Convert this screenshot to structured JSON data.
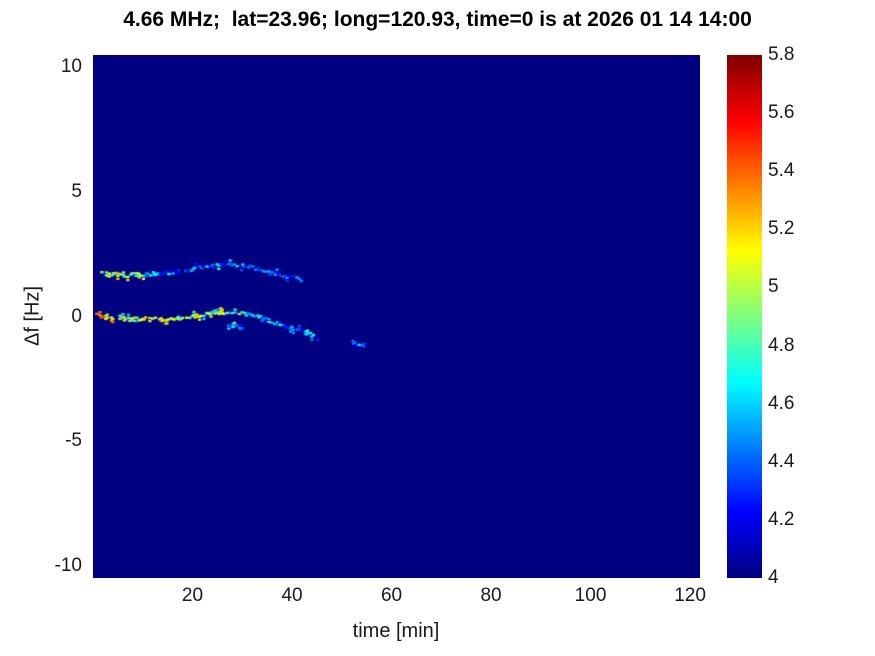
{
  "chart_data": {
    "type": "heatmap",
    "title": "4.66 MHz;  lat=23.96; long=120.93, time=0 is at 2026 01 14 14:00",
    "xlabel": "time [min]",
    "ylabel": "Δf [Hz]",
    "xlim": [
      0,
      122
    ],
    "ylim": [
      -10.5,
      10.5
    ],
    "clim": [
      4,
      5.8
    ],
    "xticks": [
      20,
      40,
      60,
      80,
      100,
      120
    ],
    "yticks": [
      10,
      5,
      0,
      -5,
      -10
    ],
    "colorbar_ticks": [
      4,
      4.2,
      4.4,
      4.6,
      4.8,
      5,
      5.2,
      5.4,
      5.6,
      5.8
    ],
    "colormap": "jet",
    "background_value": 4,
    "legend": "none",
    "grid": false,
    "traces": [
      {
        "name": "upper-doppler-trace",
        "points": [
          [
            1.5,
            1.75,
            4.6
          ],
          [
            3,
            1.7,
            4.9
          ],
          [
            5,
            1.68,
            5.0
          ],
          [
            7,
            1.65,
            4.8
          ],
          [
            9,
            1.68,
            4.9
          ],
          [
            11,
            1.7,
            4.6
          ],
          [
            13,
            1.72,
            4.5
          ],
          [
            15,
            1.75,
            4.45
          ],
          [
            17,
            1.8,
            4.5
          ],
          [
            19,
            1.85,
            4.4
          ],
          [
            21,
            1.95,
            4.45
          ],
          [
            23,
            2.0,
            4.4
          ],
          [
            25,
            2.05,
            4.45
          ],
          [
            27,
            2.1,
            4.4
          ],
          [
            29,
            2.05,
            4.35
          ],
          [
            31,
            2.0,
            4.4
          ],
          [
            33,
            1.9,
            4.35
          ],
          [
            35,
            1.8,
            4.4
          ],
          [
            37,
            1.7,
            4.35
          ],
          [
            39,
            1.6,
            4.3
          ],
          [
            41,
            1.5,
            4.35
          ],
          [
            42.5,
            1.4,
            4.3
          ]
        ]
      },
      {
        "name": "main-doppler-trace",
        "points": [
          [
            0.8,
            0.05,
            5.1
          ],
          [
            2,
            0.0,
            5.3
          ],
          [
            4,
            -0.05,
            5.0
          ],
          [
            6,
            -0.1,
            5.2
          ],
          [
            8,
            -0.12,
            4.9
          ],
          [
            10,
            -0.1,
            5.15
          ],
          [
            12,
            -0.12,
            5.0
          ],
          [
            14,
            -0.1,
            5.2
          ],
          [
            16,
            -0.08,
            4.9
          ],
          [
            18,
            -0.05,
            5.05
          ],
          [
            20,
            0.0,
            4.9
          ],
          [
            22,
            0.08,
            5.0
          ],
          [
            24,
            0.12,
            4.85
          ],
          [
            26,
            0.15,
            4.9
          ],
          [
            28,
            0.15,
            4.75
          ],
          [
            30,
            0.1,
            4.7
          ],
          [
            32,
            0.05,
            4.6
          ],
          [
            34,
            -0.05,
            4.55
          ],
          [
            36,
            -0.2,
            4.5
          ],
          [
            38,
            -0.35,
            4.45
          ],
          [
            40,
            -0.45,
            4.4
          ],
          [
            42,
            -0.6,
            4.35
          ],
          [
            44,
            -0.75,
            4.4
          ],
          [
            45.5,
            -0.85,
            4.3
          ]
        ]
      },
      {
        "name": "lower-branch-segment",
        "points": [
          [
            27,
            -0.35,
            4.45
          ],
          [
            29,
            -0.4,
            4.4
          ],
          [
            30.5,
            -0.45,
            4.45
          ]
        ]
      },
      {
        "name": "detached-arc-segment",
        "points": [
          [
            50.5,
            -0.95,
            4.4
          ],
          [
            51.5,
            -1.05,
            4.35
          ],
          [
            52.5,
            -1.15,
            4.3
          ],
          [
            53.5,
            -1.18,
            4.4
          ],
          [
            54.5,
            -1.1,
            4.35
          ],
          [
            55,
            -1.0,
            4.3
          ]
        ]
      }
    ]
  }
}
